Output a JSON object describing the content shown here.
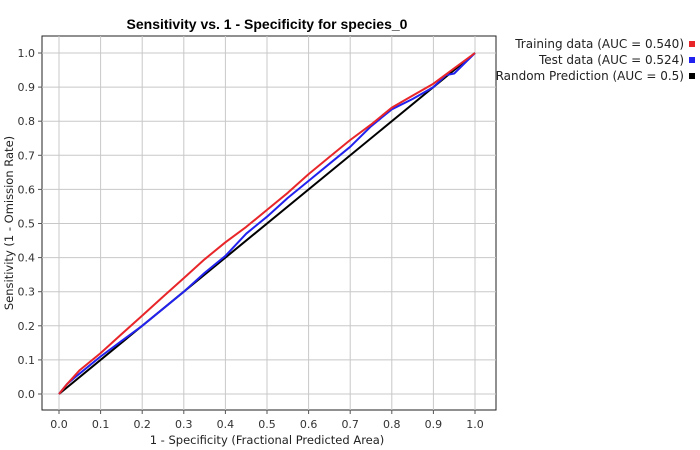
{
  "chart_data": {
    "type": "line",
    "title": "Sensitivity vs. 1 - Specificity for species_0",
    "xlabel": "1 - Specificity  (Fractional Predicted Area)",
    "ylabel": "Sensitivity  (1 - Omission Rate)",
    "xlim": [
      0,
      1
    ],
    "ylim": [
      0,
      1
    ],
    "xticks": [
      "0.0",
      "0.1",
      "0.2",
      "0.3",
      "0.4",
      "0.5",
      "0.6",
      "0.7",
      "0.8",
      "0.9",
      "1.0"
    ],
    "yticks": [
      "0.0",
      "0.1",
      "0.2",
      "0.3",
      "0.4",
      "0.5",
      "0.6",
      "0.7",
      "0.8",
      "0.9",
      "1.0"
    ],
    "grid": true,
    "legend_position": "top-right",
    "series": [
      {
        "name": "Training data (AUC = 0.540)",
        "color": "#e8262a",
        "x": [
          0,
          0.02,
          0.05,
          0.1,
          0.15,
          0.2,
          0.25,
          0.3,
          0.35,
          0.4,
          0.45,
          0.5,
          0.55,
          0.6,
          0.65,
          0.7,
          0.75,
          0.8,
          0.85,
          0.9,
          0.95,
          1.0
        ],
        "y": [
          0,
          0.03,
          0.07,
          0.12,
          0.175,
          0.23,
          0.285,
          0.34,
          0.395,
          0.445,
          0.49,
          0.54,
          0.59,
          0.645,
          0.695,
          0.745,
          0.79,
          0.84,
          0.875,
          0.91,
          0.955,
          1.0
        ]
      },
      {
        "name": "Test data (AUC = 0.524)",
        "color": "#2222ee",
        "x": [
          0,
          0.02,
          0.04,
          0.07,
          0.1,
          0.15,
          0.2,
          0.25,
          0.3,
          0.35,
          0.4,
          0.45,
          0.47,
          0.5,
          0.55,
          0.6,
          0.65,
          0.7,
          0.75,
          0.8,
          0.85,
          0.9,
          0.93,
          0.95,
          1.0
        ],
        "y": [
          0,
          0.03,
          0.05,
          0.08,
          0.11,
          0.155,
          0.2,
          0.25,
          0.3,
          0.355,
          0.405,
          0.47,
          0.49,
          0.52,
          0.575,
          0.625,
          0.675,
          0.725,
          0.785,
          0.835,
          0.865,
          0.9,
          0.935,
          0.94,
          1.0
        ]
      },
      {
        "name": "Random Prediction (AUC = 0.5)",
        "color": "#000000",
        "x": [
          0,
          1
        ],
        "y": [
          0,
          1
        ]
      }
    ]
  }
}
